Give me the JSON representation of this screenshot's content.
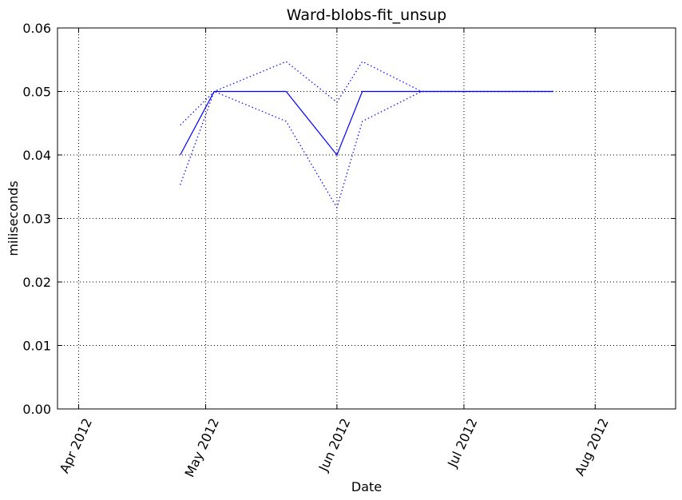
{
  "chart_data": {
    "type": "line",
    "title": "Ward-blobs-fit_unsup",
    "xlabel": "Date",
    "ylabel": "miliseconds",
    "xlim": [
      "2012-03-27",
      "2012-08-20"
    ],
    "ylim": [
      0,
      0.06
    ],
    "grid": true,
    "legend": "none",
    "x_ticks": [
      {
        "date": "2012-04-01",
        "label": "Apr 2012"
      },
      {
        "date": "2012-05-01",
        "label": "May 2012"
      },
      {
        "date": "2012-06-01",
        "label": "Jun 2012"
      },
      {
        "date": "2012-07-01",
        "label": "Jul 2012"
      },
      {
        "date": "2012-08-01",
        "label": "Aug 2012"
      }
    ],
    "y_ticks": [
      {
        "value": 0.0,
        "label": "0.00"
      },
      {
        "value": 0.01,
        "label": "0.01"
      },
      {
        "value": 0.02,
        "label": "0.02"
      },
      {
        "value": 0.03,
        "label": "0.03"
      },
      {
        "value": 0.04,
        "label": "0.04"
      },
      {
        "value": 0.05,
        "label": "0.05"
      },
      {
        "value": 0.06,
        "label": "0.06"
      }
    ],
    "x": [
      "2012-04-25",
      "2012-05-03",
      "2012-05-20",
      "2012-06-01",
      "2012-06-07",
      "2012-06-21",
      "2012-07-22"
    ],
    "series": [
      {
        "style": "solid",
        "color": "#0000ff",
        "values": [
          0.04,
          0.05,
          0.05,
          0.04,
          0.05,
          0.05,
          0.05
        ]
      },
      {
        "style": "dotted",
        "color": "#0000ff",
        "values": [
          0.0447,
          0.05,
          0.0547,
          0.0483,
          0.0547,
          0.05,
          0.05
        ]
      },
      {
        "style": "dotted",
        "color": "#0000ff",
        "values": [
          0.0353,
          0.05,
          0.0453,
          0.0317,
          0.0453,
          0.05,
          0.05
        ]
      }
    ]
  }
}
